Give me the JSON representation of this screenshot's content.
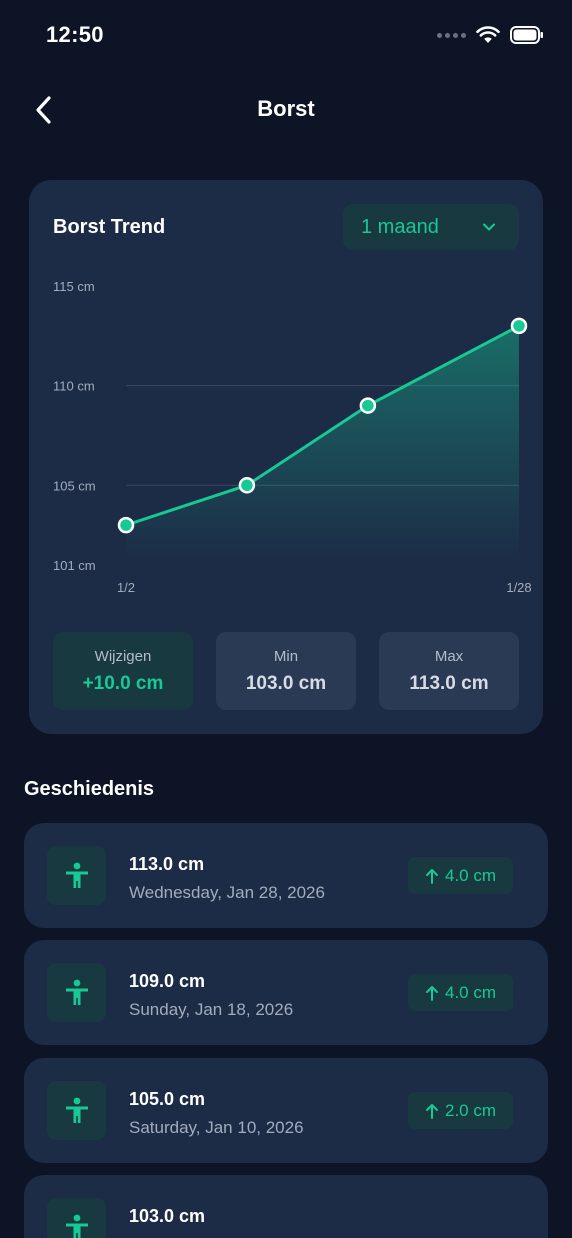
{
  "status": {
    "time": "12:50"
  },
  "nav": {
    "title": "Borst"
  },
  "card": {
    "title": "Borst Trend",
    "period": "1 maand"
  },
  "chart_data": {
    "type": "area",
    "title": "Borst Trend",
    "x_labels": [
      "1/2",
      "1/28"
    ],
    "y_ticks": [
      "115 cm",
      "110 cm",
      "105 cm",
      "101 cm"
    ],
    "y_tick_values": [
      115,
      110,
      105,
      101
    ],
    "ylim": [
      101,
      115
    ],
    "grid": true,
    "points": [
      {
        "date": "Jan 2",
        "value": 103.0
      },
      {
        "date": "Jan 10",
        "value": 105.0
      },
      {
        "date": "Jan 18",
        "value": 109.0
      },
      {
        "date": "Jan 28",
        "value": 113.0
      }
    ],
    "line_color": "#17c995"
  },
  "stats": {
    "change_label": "Wijzigen",
    "change_value": "+10.0 cm",
    "min_label": "Min",
    "min_value": "103.0 cm",
    "max_label": "Max",
    "max_value": "113.0 cm"
  },
  "history": {
    "title": "Geschiedenis",
    "items": [
      {
        "value": "113.0 cm",
        "date": "Wednesday, Jan 28, 2026",
        "delta": "4.0 cm"
      },
      {
        "value": "109.0 cm",
        "date": "Sunday, Jan 18, 2026",
        "delta": "4.0 cm"
      },
      {
        "value": "105.0 cm",
        "date": "Saturday, Jan 10, 2026",
        "delta": "2.0 cm"
      },
      {
        "value": "103.0 cm",
        "date": "",
        "delta": ""
      }
    ]
  },
  "colors": {
    "accent": "#17c995",
    "background": "#0c1425",
    "card": "#1c2b46"
  },
  "icons": {
    "back": "chevron-left-icon",
    "dropdown": "chevron-down-icon",
    "person": "person-icon",
    "arrow": "arrow-up-icon"
  }
}
